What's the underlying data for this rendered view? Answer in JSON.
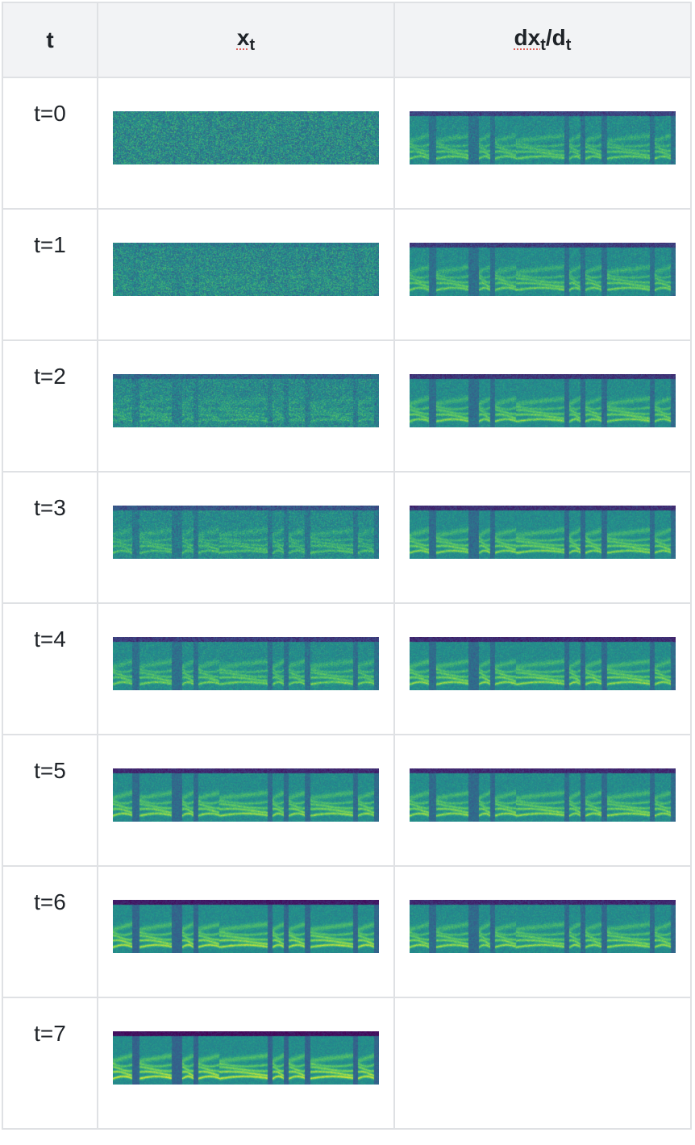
{
  "header": {
    "t_label": "t",
    "xt_label": "x",
    "xt_sub": "t",
    "dxdt_prefix": "dx",
    "dxdt_sub1": "t",
    "dxdt_mid": "/d",
    "dxdt_sub2": "t"
  },
  "rows": [
    {
      "t": "t=0",
      "x_denoise": 0.0,
      "d_denoise": 0.62,
      "has_d": true
    },
    {
      "t": "t=1",
      "x_denoise": 0.12,
      "d_denoise": 0.68,
      "has_d": true
    },
    {
      "t": "t=2",
      "x_denoise": 0.3,
      "d_denoise": 0.74,
      "has_d": true
    },
    {
      "t": "t=3",
      "x_denoise": 0.5,
      "d_denoise": 0.78,
      "has_d": true
    },
    {
      "t": "t=4",
      "x_denoise": 0.68,
      "d_denoise": 0.8,
      "has_d": true
    },
    {
      "t": "t=5",
      "x_denoise": 0.82,
      "d_denoise": 0.82,
      "has_d": true
    },
    {
      "t": "t=6",
      "x_denoise": 0.92,
      "d_denoise": 0.82,
      "has_d": true
    },
    {
      "t": "t=7",
      "x_denoise": 1.0,
      "d_denoise": 0,
      "has_d": false
    }
  ],
  "colors": {
    "border": "#dfe1e4",
    "header_bg": "#f2f3f5",
    "underline": "#e0605a"
  }
}
